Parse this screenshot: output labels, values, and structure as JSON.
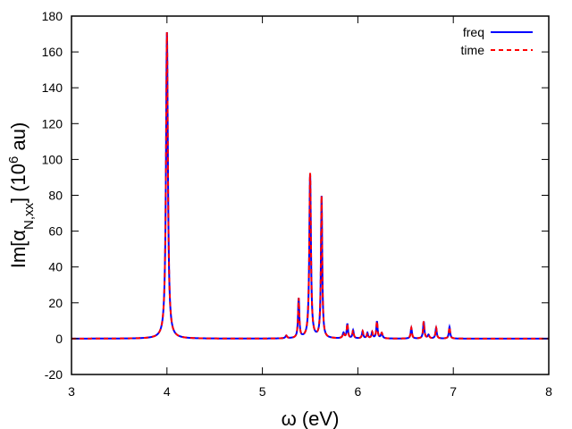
{
  "chart_data": {
    "type": "line",
    "title": "",
    "xlabel": "ω (eV)",
    "ylabel": {
      "prefix": "Im[α",
      "subscript": "N,xx",
      "middle": "] (10",
      "superscript": "6",
      "suffix": " au)"
    },
    "xlim": [
      3,
      8
    ],
    "ylim": [
      -20,
      180
    ],
    "xticks": [
      3,
      4,
      5,
      6,
      7,
      8
    ],
    "yticks": [
      -20,
      0,
      20,
      40,
      60,
      80,
      100,
      120,
      140,
      160,
      180
    ],
    "grid": false,
    "legend_position": "top-right",
    "series": [
      {
        "name": "freq",
        "color": "#0000ff",
        "style": "solid"
      },
      {
        "name": "time",
        "color": "#ff0000",
        "style": "dashed"
      }
    ],
    "peaks": [
      {
        "x": 4.0,
        "height": 171,
        "width": 0.012
      },
      {
        "x": 5.25,
        "height": 1.5,
        "width": 0.01
      },
      {
        "x": 5.38,
        "height": 22,
        "width": 0.008
      },
      {
        "x": 5.5,
        "height": 92,
        "width": 0.01
      },
      {
        "x": 5.62,
        "height": 79,
        "width": 0.008
      },
      {
        "x": 5.85,
        "height": 3,
        "width": 0.01
      },
      {
        "x": 5.89,
        "height": 8,
        "width": 0.008
      },
      {
        "x": 5.95,
        "height": 4.5,
        "width": 0.008
      },
      {
        "x": 6.05,
        "height": 4,
        "width": 0.008
      },
      {
        "x": 6.1,
        "height": 3,
        "width": 0.008
      },
      {
        "x": 6.15,
        "height": 3.5,
        "width": 0.008
      },
      {
        "x": 6.2,
        "height": 9.5,
        "width": 0.008
      },
      {
        "x": 6.25,
        "height": 3,
        "width": 0.01
      },
      {
        "x": 6.56,
        "height": 6,
        "width": 0.008
      },
      {
        "x": 6.69,
        "height": 9.5,
        "width": 0.008
      },
      {
        "x": 6.74,
        "height": 2,
        "width": 0.01
      },
      {
        "x": 6.82,
        "height": 6,
        "width": 0.008
      },
      {
        "x": 6.96,
        "height": 6.5,
        "width": 0.008
      }
    ]
  }
}
